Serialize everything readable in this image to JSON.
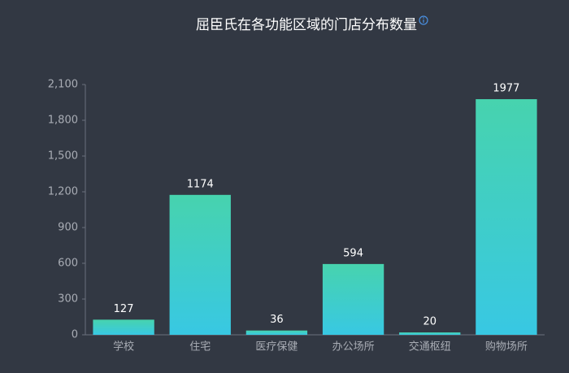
{
  "chart_data": {
    "type": "bar",
    "title": "屈臣氏在各功能区域的门店分布数量",
    "categories": [
      "学校",
      "住宅",
      "医疗保健",
      "办公场所",
      "交通枢纽",
      "购物场所"
    ],
    "values": [
      127,
      1174,
      36,
      594,
      20,
      1977
    ],
    "color": [
      "#47d3ae",
      "#38c8e3"
    ],
    "ylim": [
      0,
      2100
    ],
    "yticks": [
      0,
      300,
      600,
      900,
      {
        "value": 1200,
        "label": "1,200"
      },
      {
        "value": 1500,
        "label": "1,500"
      },
      {
        "value": 1800,
        "label": "1,800"
      },
      {
        "value": 2100,
        "label": "2,100"
      }
    ]
  }
}
